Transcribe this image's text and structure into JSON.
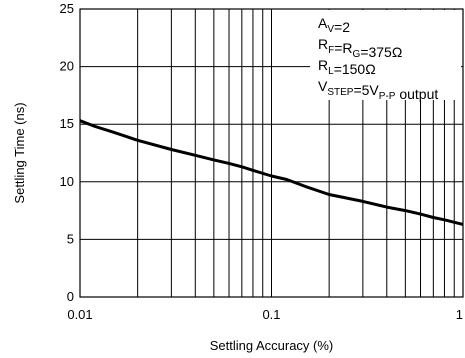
{
  "chart_data": {
    "type": "line",
    "title": "",
    "xlabel": "Settling Accuracy (%)",
    "ylabel": "Settling Time (ns)",
    "x_scale": "log",
    "xlim": [
      0.01,
      1
    ],
    "ylim": [
      0,
      25
    ],
    "x_ticks": [
      0.01,
      0.1,
      1
    ],
    "x_tick_labels": [
      "0.01",
      "0.1",
      "1"
    ],
    "y_ticks": [
      0,
      5,
      10,
      15,
      20,
      25
    ],
    "y_tick_labels": [
      "0",
      "5",
      "10",
      "15",
      "20",
      "25"
    ],
    "grid": true,
    "series": [
      {
        "name": "",
        "x": [
          0.01,
          0.012,
          0.015,
          0.02,
          0.03,
          0.04,
          0.05,
          0.06,
          0.07,
          0.08,
          0.1,
          0.12,
          0.15,
          0.2,
          0.3,
          0.4,
          0.5,
          0.6,
          0.7,
          0.8,
          1.0
        ],
        "y": [
          15.3,
          14.8,
          14.3,
          13.6,
          12.8,
          12.3,
          11.9,
          11.6,
          11.3,
          11.0,
          10.5,
          10.2,
          9.6,
          8.9,
          8.3,
          7.8,
          7.5,
          7.2,
          6.9,
          6.7,
          6.3
        ]
      }
    ],
    "annotations": [
      {
        "id": "av",
        "segments": [
          {
            "t": "A"
          },
          {
            "t": "V",
            "sub": true
          },
          {
            "t": "=2"
          }
        ]
      },
      {
        "id": "rf",
        "segments": [
          {
            "t": "R"
          },
          {
            "t": "F",
            "sub": true
          },
          {
            "t": "=R"
          },
          {
            "t": "G",
            "sub": true
          },
          {
            "t": "=375Ω"
          }
        ]
      },
      {
        "id": "rl",
        "segments": [
          {
            "t": "R"
          },
          {
            "t": "L",
            "sub": true
          },
          {
            "t": "=150Ω"
          }
        ]
      },
      {
        "id": "vstep",
        "segments": [
          {
            "t": "V"
          },
          {
            "t": "STEP",
            "sub": true
          },
          {
            "t": "=5V"
          },
          {
            "t": "P-P",
            "sub": true
          },
          {
            "t": " output"
          }
        ]
      }
    ],
    "legend": "top-right annotation box"
  }
}
